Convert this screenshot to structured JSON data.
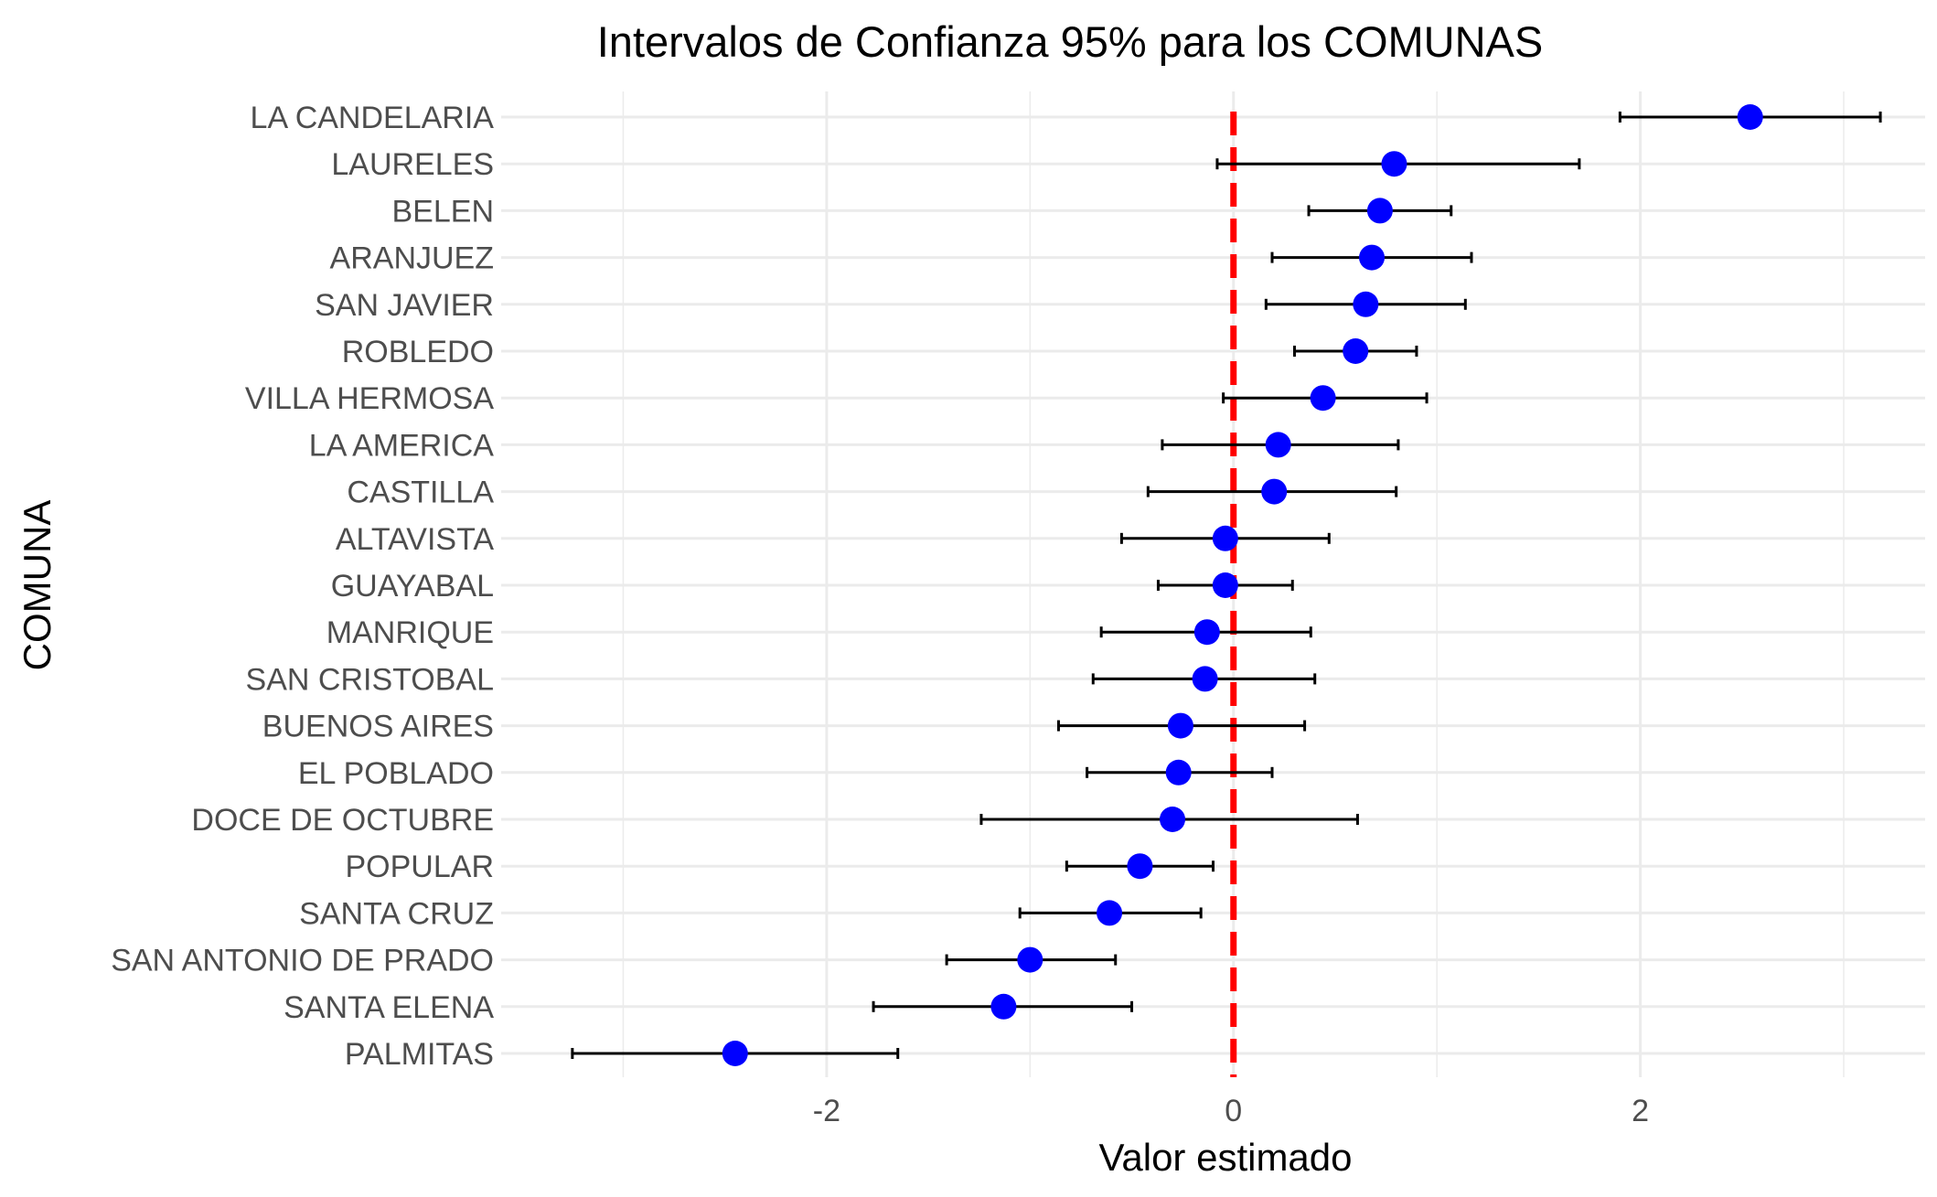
{
  "chart_data": {
    "type": "scatter",
    "title": "Intervalos de Confianza 95% para los COMUNAS",
    "xlabel": "Valor estimado",
    "ylabel": "COMUNA",
    "xlim": [
      -3.6,
      3.4
    ],
    "x_ticks": [
      -2,
      0,
      2
    ],
    "x_tick_labels": [
      "-2",
      "0",
      "2"
    ],
    "grid": true,
    "reference_line": {
      "x": 0,
      "color": "#ff0000",
      "style": "dashed"
    },
    "point_color": "#0000ff",
    "interval_color": "#000000",
    "categories": [
      "LA CANDELARIA",
      "LAURELES",
      "BELEN",
      "ARANJUEZ",
      "SAN JAVIER",
      "ROBLEDO",
      "VILLA HERMOSA",
      "LA AMERICA",
      "CASTILLA",
      "ALTAVISTA",
      "GUAYABAL",
      "MANRIQUE",
      "SAN CRISTOBAL",
      "BUENOS AIRES",
      "EL POBLADO",
      "DOCE DE OCTUBRE",
      "POPULAR",
      "SANTA CRUZ",
      "SAN ANTONIO DE PRADO",
      "SANTA ELENA",
      "PALMITAS"
    ],
    "estimates": [
      2.54,
      0.79,
      0.72,
      0.68,
      0.65,
      0.6,
      0.44,
      0.22,
      0.2,
      -0.04,
      -0.04,
      -0.13,
      -0.14,
      -0.26,
      -0.27,
      -0.3,
      -0.46,
      -0.61,
      -1.0,
      -1.13,
      -2.45
    ],
    "lower": [
      1.9,
      -0.08,
      0.37,
      0.19,
      0.16,
      0.3,
      -0.05,
      -0.35,
      -0.42,
      -0.55,
      -0.37,
      -0.65,
      -0.69,
      -0.86,
      -0.72,
      -1.24,
      -0.82,
      -1.05,
      -1.41,
      -1.77,
      -3.25
    ],
    "upper": [
      3.18,
      1.7,
      1.07,
      1.17,
      1.14,
      0.9,
      0.95,
      0.81,
      0.8,
      0.47,
      0.29,
      0.38,
      0.4,
      0.35,
      0.19,
      0.61,
      -0.1,
      -0.16,
      -0.58,
      -0.5,
      -1.65
    ]
  }
}
